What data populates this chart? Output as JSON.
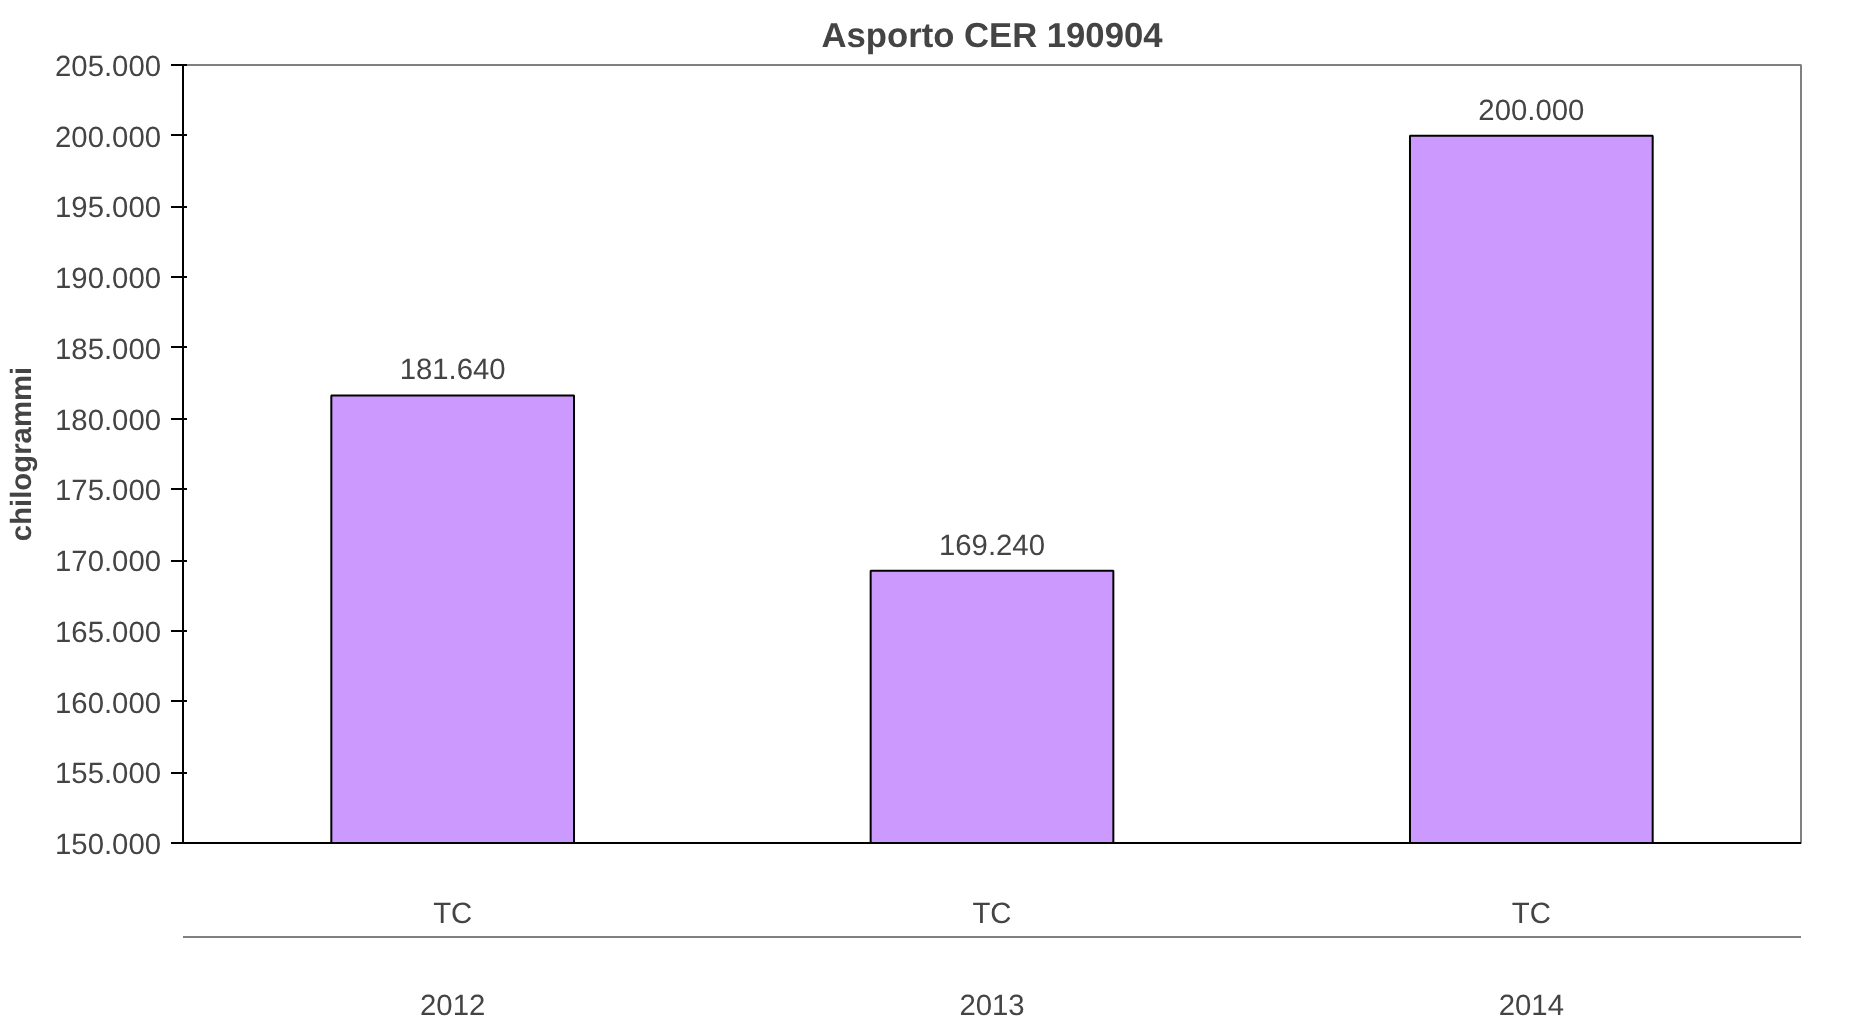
{
  "chart_data": {
    "type": "bar",
    "title": "Asporto CER 190904",
    "ylabel": "chilogrammi",
    "categories": [
      "TC",
      "TC",
      "TC"
    ],
    "annotations": [
      "2012",
      "2013",
      "2014"
    ],
    "values": [
      181640,
      169240,
      200000
    ],
    "value_labels": [
      "181.640",
      "169.240",
      "200.000"
    ],
    "color": "#cc99ff",
    "ylim": [
      150000,
      205000
    ],
    "yticks": [
      {
        "value": 150000,
        "label": "150.000"
      },
      {
        "value": 155000,
        "label": "155.000"
      },
      {
        "value": 160000,
        "label": "160.000"
      },
      {
        "value": 165000,
        "label": "165.000"
      },
      {
        "value": 170000,
        "label": "170.000"
      },
      {
        "value": 175000,
        "label": "175.000"
      },
      {
        "value": 180000,
        "label": "180.000"
      },
      {
        "value": 185000,
        "label": "185.000"
      },
      {
        "value": 190000,
        "label": "190.000"
      },
      {
        "value": 195000,
        "label": "195.000"
      },
      {
        "value": 200000,
        "label": "200.000"
      },
      {
        "value": 205000,
        "label": "205.000"
      }
    ],
    "grid": false
  }
}
